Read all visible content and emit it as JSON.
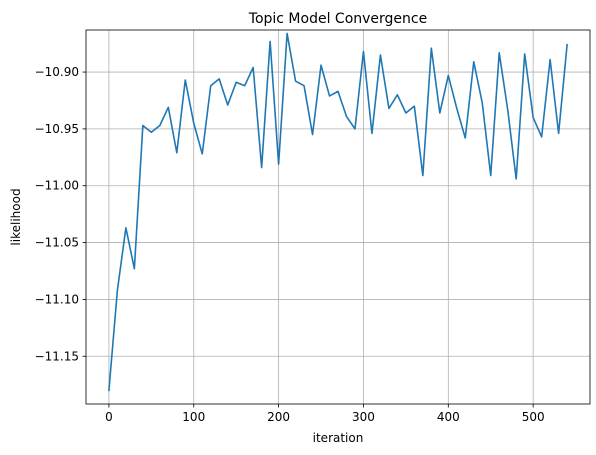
{
  "chart_data": {
    "type": "line",
    "title": "Topic Model Convergence",
    "xlabel": "iteration",
    "ylabel": "likelihood",
    "xlim": [
      -27,
      567
    ],
    "ylim": [
      -11.192,
      -10.863
    ],
    "xticks": [
      0,
      100,
      200,
      300,
      400,
      500
    ],
    "yticks": [
      -11.15,
      -11.1,
      -11.05,
      -11.0,
      -10.95,
      -10.9
    ],
    "xtick_labels": [
      "0",
      "100",
      "200",
      "300",
      "400",
      "500"
    ],
    "ytick_labels": [
      "−11.15",
      "−11.10",
      "−11.05",
      "−11.00",
      "−10.95",
      "−10.90"
    ],
    "grid": true,
    "line_color": "#1f77b4",
    "series": [
      {
        "x": [
          0,
          10,
          20,
          30,
          40,
          50,
          60,
          70,
          80,
          90,
          100,
          110,
          120,
          130,
          140,
          150,
          160,
          170,
          180,
          190,
          200,
          210,
          220,
          230,
          240,
          250,
          260,
          270,
          280,
          290,
          300,
          310,
          320,
          330,
          340,
          350,
          360,
          370,
          380,
          390,
          400,
          410,
          420,
          430,
          440,
          450,
          460,
          470,
          480,
          490,
          500,
          510,
          520,
          530,
          540
        ],
        "values": [
          -11.18,
          -11.092,
          -11.037,
          -11.073,
          -10.947,
          -10.953,
          -10.947,
          -10.931,
          -10.971,
          -10.907,
          -10.945,
          -10.972,
          -10.912,
          -10.906,
          -10.929,
          -10.909,
          -10.912,
          -10.896,
          -10.984,
          -10.873,
          -10.981,
          -10.866,
          -10.908,
          -10.912,
          -10.955,
          -10.894,
          -10.921,
          -10.917,
          -10.939,
          -10.95,
          -10.882,
          -10.954,
          -10.885,
          -10.932,
          -10.92,
          -10.936,
          -10.93,
          -10.991,
          -10.879,
          -10.936,
          -10.903,
          -10.932,
          -10.958,
          -10.891,
          -10.927,
          -10.991,
          -10.883,
          -10.933,
          -10.994,
          -10.884,
          -10.94,
          -10.957,
          -10.889,
          -10.954,
          -10.876
        ]
      }
    ]
  }
}
